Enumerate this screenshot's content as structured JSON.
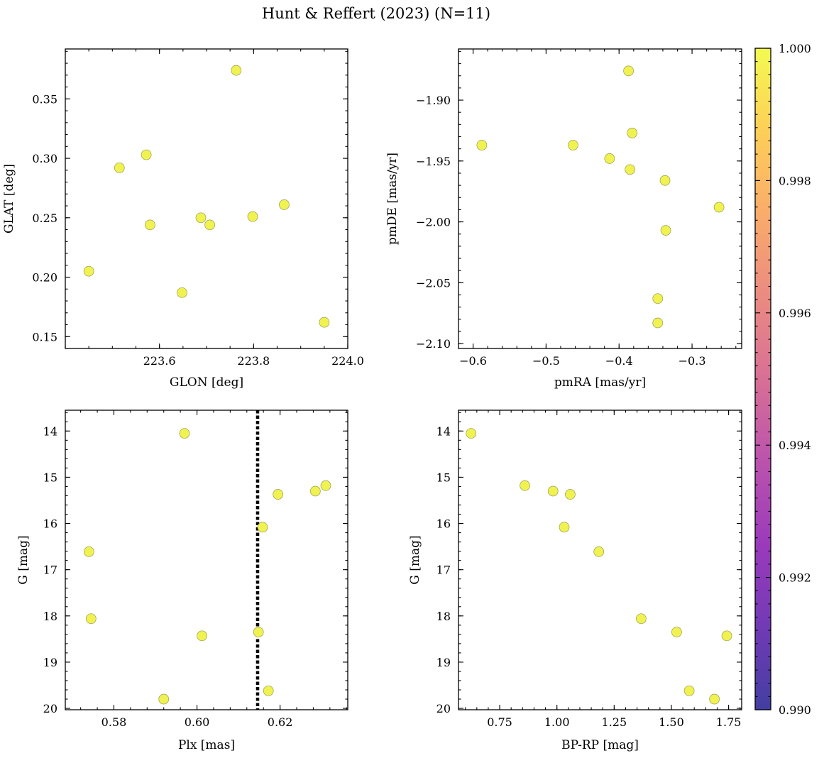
{
  "figure": {
    "title": "Hunt & Reffert (2023) (N=11)"
  },
  "colorbar": {
    "min": 0.99,
    "max": 1.0,
    "ticks": [
      "0.990",
      "0.992",
      "0.994",
      "0.996",
      "0.998",
      "1.000"
    ],
    "colormap": "plasma"
  },
  "colors": {
    "point_fill": "#f0f250",
    "point_edge": "#9a9a55",
    "vline": "#000000"
  },
  "chart_data": [
    {
      "type": "scatter",
      "xlabel": "GLON [deg]",
      "ylabel": "GLAT [deg]",
      "xlim": [
        223.4,
        224.0
      ],
      "ylim": [
        0.14,
        0.392
      ],
      "xticks": [
        223.6,
        223.8,
        224.0
      ],
      "xticklabels": [
        "223.6",
        "223.8",
        "224.0"
      ],
      "xminor": 0.05,
      "yticks": [
        0.15,
        0.2,
        0.25,
        0.3,
        0.35
      ],
      "yticklabels": [
        "0.15",
        "0.20",
        "0.25",
        "0.30",
        "0.35"
      ],
      "yminor": 0.01,
      "points": [
        {
          "x": 223.45,
          "y": 0.205
        },
        {
          "x": 223.515,
          "y": 0.292
        },
        {
          "x": 223.572,
          "y": 0.303
        },
        {
          "x": 223.58,
          "y": 0.244
        },
        {
          "x": 223.648,
          "y": 0.187
        },
        {
          "x": 223.688,
          "y": 0.25
        },
        {
          "x": 223.707,
          "y": 0.244
        },
        {
          "x": 223.763,
          "y": 0.374
        },
        {
          "x": 223.798,
          "y": 0.251
        },
        {
          "x": 223.865,
          "y": 0.261
        },
        {
          "x": 223.95,
          "y": 0.162
        }
      ]
    },
    {
      "type": "scatter",
      "xlabel": "pmRA [mas/yr]",
      "ylabel": "pmDE [mas/yr]",
      "xlim": [
        -0.62,
        -0.232
      ],
      "ylim": [
        -2.104,
        -1.858
      ],
      "xticks": [
        -0.6,
        -0.5,
        -0.4,
        -0.3
      ],
      "xticklabels": [
        "−0.6",
        "−0.5",
        "−0.4",
        "−0.3"
      ],
      "xminor": 0.02,
      "yticks": [
        -2.1,
        -2.05,
        -2.0,
        -1.95,
        -1.9
      ],
      "yticklabels": [
        "−2.10",
        "−2.05",
        "−2.00",
        "−1.95",
        "−1.90"
      ],
      "yminor": 0.01,
      "points": [
        {
          "x": -0.588,
          "y": -1.937
        },
        {
          "x": -0.463,
          "y": -1.937
        },
        {
          "x": -0.413,
          "y": -1.948
        },
        {
          "x": -0.387,
          "y": -1.876
        },
        {
          "x": -0.382,
          "y": -1.927
        },
        {
          "x": -0.385,
          "y": -1.957
        },
        {
          "x": -0.337,
          "y": -1.966
        },
        {
          "x": -0.336,
          "y": -2.007
        },
        {
          "x": -0.347,
          "y": -2.063
        },
        {
          "x": -0.347,
          "y": -2.083
        },
        {
          "x": -0.263,
          "y": -1.988
        }
      ]
    },
    {
      "type": "scatter",
      "xlabel": "Plx [mas]",
      "ylabel": "G [mag]",
      "xlim": [
        0.5683,
        0.6363
      ],
      "ylim": [
        20.03,
        13.55
      ],
      "xticks": [
        0.58,
        0.6,
        0.62
      ],
      "xticklabels": [
        "0.58",
        "0.60",
        "0.62"
      ],
      "xminor": 0.004,
      "yticks": [
        14,
        15,
        16,
        17,
        18,
        19,
        20
      ],
      "yticklabels": [
        "14",
        "15",
        "16",
        "17",
        "18",
        "19",
        "20"
      ],
      "yminor": 0.2,
      "vline": 0.6146,
      "points": [
        {
          "x": 0.597,
          "y": 14.05
        },
        {
          "x": 0.631,
          "y": 15.18
        },
        {
          "x": 0.6285,
          "y": 15.3
        },
        {
          "x": 0.6195,
          "y": 15.37
        },
        {
          "x": 0.6158,
          "y": 16.08
        },
        {
          "x": 0.574,
          "y": 16.61
        },
        {
          "x": 0.5745,
          "y": 18.06
        },
        {
          "x": 0.6148,
          "y": 18.35
        },
        {
          "x": 0.6012,
          "y": 18.43
        },
        {
          "x": 0.6172,
          "y": 19.62
        },
        {
          "x": 0.592,
          "y": 19.8
        }
      ]
    },
    {
      "type": "scatter",
      "xlabel": "BP-RP [mag]",
      "ylabel": "G [mag]",
      "xlim": [
        0.57,
        1.807
      ],
      "ylim": [
        20.03,
        13.55
      ],
      "xticks": [
        0.75,
        1.0,
        1.25,
        1.5,
        1.75
      ],
      "xticklabels": [
        "0.75",
        "1.00",
        "1.25",
        "1.50",
        "1.75"
      ],
      "xminor": 0.05,
      "yticks": [
        14,
        15,
        16,
        17,
        18,
        19,
        20
      ],
      "yticklabels": [
        "14",
        "15",
        "16",
        "17",
        "18",
        "19",
        "20"
      ],
      "yminor": 0.2,
      "points": [
        {
          "x": 0.625,
          "y": 14.05
        },
        {
          "x": 0.86,
          "y": 15.18
        },
        {
          "x": 0.983,
          "y": 15.3
        },
        {
          "x": 1.058,
          "y": 15.37
        },
        {
          "x": 1.032,
          "y": 16.08
        },
        {
          "x": 1.183,
          "y": 16.61
        },
        {
          "x": 1.368,
          "y": 18.06
        },
        {
          "x": 1.523,
          "y": 18.35
        },
        {
          "x": 1.742,
          "y": 18.43
        },
        {
          "x": 1.578,
          "y": 19.62
        },
        {
          "x": 1.688,
          "y": 19.8
        }
      ]
    }
  ]
}
